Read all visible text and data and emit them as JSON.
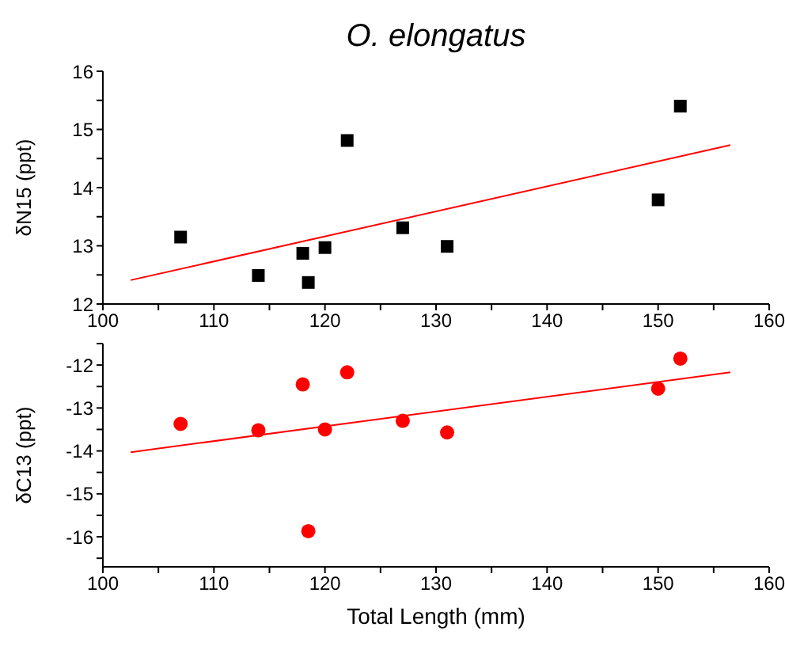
{
  "chart_data": [
    {
      "type": "scatter",
      "title": "O. elongatus",
      "ylabel": "δN15 (ppt)",
      "marker": "square",
      "grid": false,
      "legend": false,
      "xlim": [
        100,
        160
      ],
      "xticks": [
        100,
        {
          "value": 105,
          "label": null
        },
        110,
        {
          "value": 115,
          "label": null
        },
        120,
        {
          "value": 125,
          "label": null
        },
        130,
        {
          "value": 135,
          "label": null
        },
        140,
        {
          "value": 145,
          "label": null
        },
        150,
        {
          "value": 155,
          "label": null
        },
        160
      ],
      "ylim": [
        12,
        16
      ],
      "yticks": [
        12,
        {
          "value": 12.5,
          "label": null
        },
        13,
        {
          "value": 13.5,
          "label": null
        },
        14,
        {
          "value": 14.5,
          "label": null
        },
        15,
        {
          "value": 15.5,
          "label": null
        },
        16
      ],
      "series": [
        {
          "color": "#000000",
          "x": [
            107,
            114,
            118,
            118.5,
            120,
            122,
            127,
            131,
            150,
            152
          ],
          "values": [
            13.15,
            12.49,
            12.87,
            12.37,
            12.97,
            14.81,
            13.31,
            12.99,
            13.79,
            15.4
          ]
        },
        {
          "type": "line",
          "color": "#ff0000",
          "marker": "none",
          "x": [
            102.5,
            156.5
          ],
          "values": [
            12.41,
            14.73
          ]
        }
      ]
    },
    {
      "type": "scatter",
      "xlabel": "Total Length (mm)",
      "ylabel": "δC13 (ppt)",
      "marker": "circle",
      "grid": false,
      "legend": false,
      "xlim": [
        100,
        160
      ],
      "xticks": [
        100,
        {
          "value": 105,
          "label": null
        },
        110,
        {
          "value": 115,
          "label": null
        },
        120,
        {
          "value": 125,
          "label": null
        },
        130,
        {
          "value": 135,
          "label": null
        },
        140,
        {
          "value": 145,
          "label": null
        },
        150,
        {
          "value": 155,
          "label": null
        },
        160
      ],
      "ylim": [
        -16.7,
        -11.5
      ],
      "yticks": [
        {
          "value": -16.5,
          "label": null
        },
        -16,
        {
          "value": -15.5,
          "label": null
        },
        -15,
        {
          "value": -14.5,
          "label": null
        },
        -14,
        {
          "value": -13.5,
          "label": null
        },
        -13,
        {
          "value": -12.5,
          "label": null
        },
        -12,
        {
          "value": -11.5,
          "label": null
        }
      ],
      "series": [
        {
          "color": "#ff0000",
          "x": [
            107,
            114,
            118,
            118.5,
            120,
            122,
            127,
            131,
            150,
            152
          ],
          "values": [
            -13.37,
            -13.52,
            -12.45,
            -15.87,
            -13.5,
            -12.17,
            -13.3,
            -13.57,
            -12.55,
            -11.85
          ]
        },
        {
          "type": "line",
          "color": "#ff0000",
          "marker": "none",
          "x": [
            102.5,
            156.5
          ],
          "values": [
            -14.03,
            -12.17
          ]
        }
      ]
    }
  ]
}
